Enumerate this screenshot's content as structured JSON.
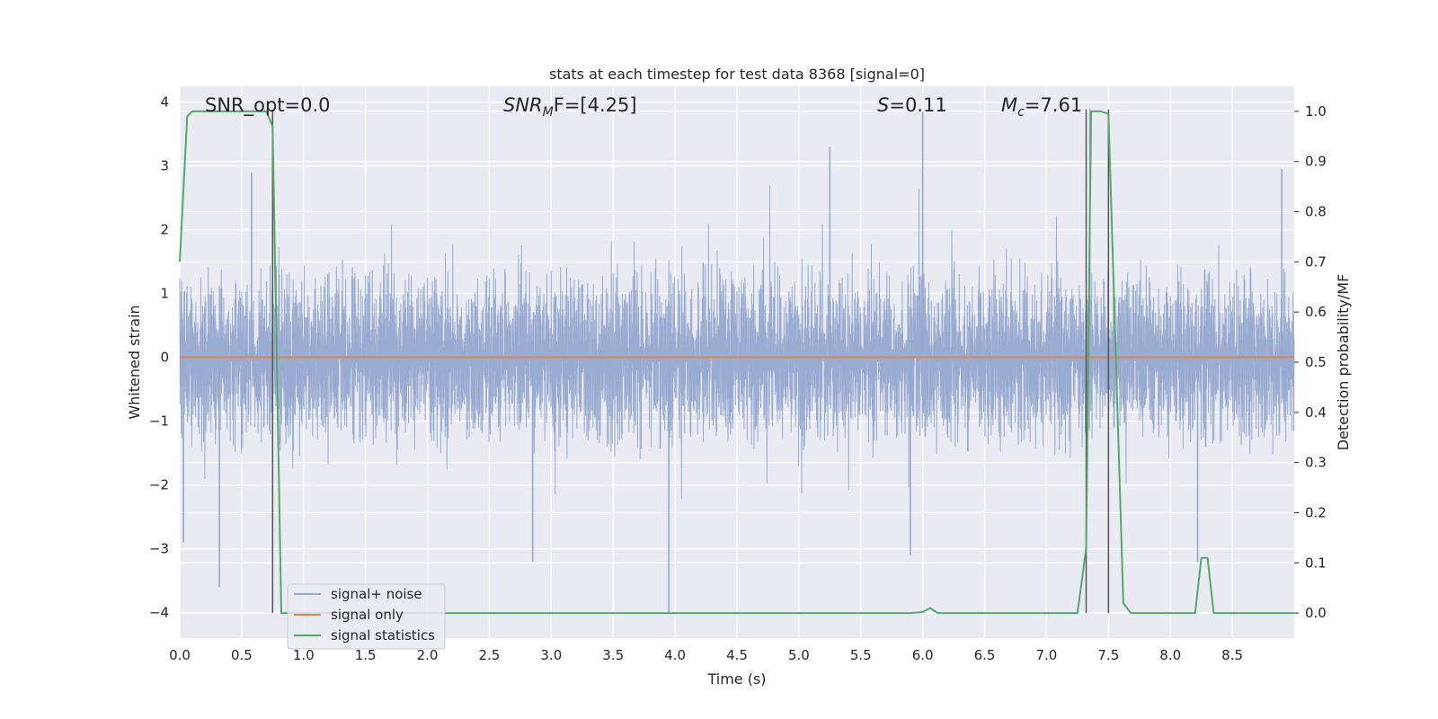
{
  "chart_data": {
    "type": "line",
    "title": "stats at each timestep for test data 8368 [signal=0]",
    "xlabel": "Time (s)",
    "ylabel": "Whitened strain",
    "y2label": "Detection probability/MF",
    "xlim": [
      0.0,
      9.0
    ],
    "ylim": [
      -4.4,
      4.25
    ],
    "y2lim": [
      -0.05,
      1.05
    ],
    "xticks": [
      "0.0",
      "0.5",
      "1.0",
      "1.5",
      "2.0",
      "2.5",
      "3.0",
      "3.5",
      "4.0",
      "4.5",
      "5.0",
      "5.5",
      "6.0",
      "6.5",
      "7.0",
      "7.5",
      "8.0",
      "8.5"
    ],
    "yticks": [
      "4",
      "3",
      "2",
      "1",
      "0",
      "−1",
      "−2",
      "−3",
      "−4"
    ],
    "y2ticks": [
      "1.0",
      "0.9",
      "0.8",
      "0.7",
      "0.6",
      "0.5",
      "0.4",
      "0.3",
      "0.2",
      "0.1",
      "0.0"
    ],
    "grid": true,
    "legend_position": "lower-left",
    "annotations": {
      "snr_opt": "SNR_opt=0.0",
      "snr_mf_base": "SNR",
      "snr_mf_sub": "M",
      "snr_mf_rest": "F=[4.25]",
      "s_italic": "S",
      "s_rest": "=0.11",
      "mc_base": "M",
      "mc_sub": "c",
      "mc_rest": "=7.61"
    },
    "vertical_lines_x": [
      0.75,
      7.32,
      7.5
    ],
    "series": [
      {
        "name": "signal+ noise",
        "color": "#95a8cf",
        "envelope_typical": 1.6,
        "notable_spikes": [
          {
            "x": 0.03,
            "y": -2.9
          },
          {
            "x": 0.32,
            "y": -3.6
          },
          {
            "x": 0.58,
            "y": 2.9
          },
          {
            "x": 2.85,
            "y": -3.2
          },
          {
            "x": 3.95,
            "y": -4.0
          },
          {
            "x": 5.25,
            "y": 3.3
          },
          {
            "x": 5.9,
            "y": -3.1
          },
          {
            "x": 6.0,
            "y": 3.85
          },
          {
            "x": 7.35,
            "y": 3.9
          },
          {
            "x": 8.22,
            "y": -3.2
          },
          {
            "x": 8.9,
            "y": 2.95
          }
        ]
      },
      {
        "name": "signal only",
        "color": "#dd8452",
        "x": [
          0.0,
          9.0
        ],
        "y": [
          0.0,
          0.0
        ]
      },
      {
        "name": "signal statistics",
        "color": "#55a868",
        "x": [
          0.0,
          0.06,
          0.1,
          0.5,
          0.7,
          0.75,
          0.82,
          0.88,
          5.9,
          6.0,
          6.06,
          6.12,
          7.25,
          7.32,
          7.36,
          7.44,
          7.5,
          7.62,
          7.68,
          8.2,
          8.25,
          8.3,
          8.35,
          9.0
        ],
        "y": [
          0.7,
          0.99,
          1.0,
          1.0,
          1.0,
          0.97,
          0.0,
          0.0,
          0.0,
          0.002,
          0.01,
          0.0,
          0.0,
          0.13,
          1.0,
          1.0,
          0.995,
          0.02,
          0.0,
          0.0,
          0.11,
          0.11,
          0.0,
          0.0
        ]
      }
    ]
  }
}
